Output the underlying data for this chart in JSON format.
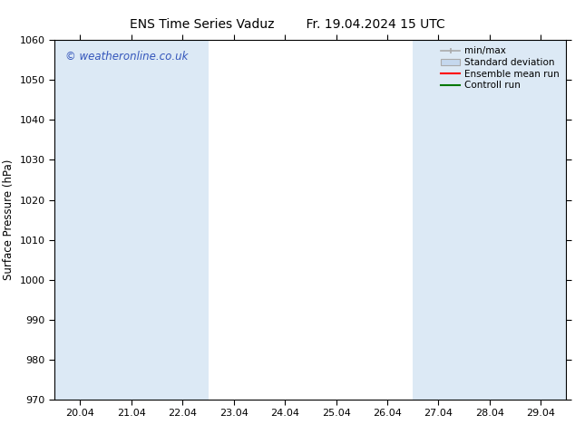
{
  "title": "ENS Time Series Vaduz",
  "title2": "Fr. 19.04.2024 15 UTC",
  "ylabel": "Surface Pressure (hPa)",
  "ylim": [
    970,
    1060
  ],
  "yticks": [
    970,
    980,
    990,
    1000,
    1010,
    1020,
    1030,
    1040,
    1050,
    1060
  ],
  "xtick_labels": [
    "20.04",
    "21.04",
    "22.04",
    "23.04",
    "24.04",
    "25.04",
    "26.04",
    "27.04",
    "28.04",
    "29.04"
  ],
  "xtick_positions": [
    0,
    1,
    2,
    3,
    4,
    5,
    6,
    7,
    8,
    9
  ],
  "xlim": [
    -0.5,
    9.5
  ],
  "watermark": "© weatheronline.co.uk",
  "watermark_color": "#3355bb",
  "bg_color": "#ffffff",
  "plot_bg_color": "#ffffff",
  "shaded_bands": [
    {
      "xmin": -0.5,
      "xmax": 0.5
    },
    {
      "xmin": 0.5,
      "xmax": 1.5
    },
    {
      "xmin": 1.5,
      "xmax": 2.5
    },
    {
      "xmin": 6.5,
      "xmax": 7.5
    },
    {
      "xmin": 7.5,
      "xmax": 8.5
    },
    {
      "xmin": 8.5,
      "xmax": 9.5
    }
  ],
  "shaded_color": "#dce9f5",
  "legend_labels": [
    "min/max",
    "Standard deviation",
    "Ensemble mean run",
    "Controll run"
  ],
  "legend_line_color": "#aaaaaa",
  "legend_std_facecolor": "#c5d8ee",
  "legend_std_edgecolor": "#aaaaaa",
  "legend_ens_color": "#ff0000",
  "legend_ctrl_color": "#007700",
  "title_fontsize": 10,
  "tick_fontsize": 8,
  "ylabel_fontsize": 8.5,
  "watermark_fontsize": 8.5,
  "legend_fontsize": 7.5
}
